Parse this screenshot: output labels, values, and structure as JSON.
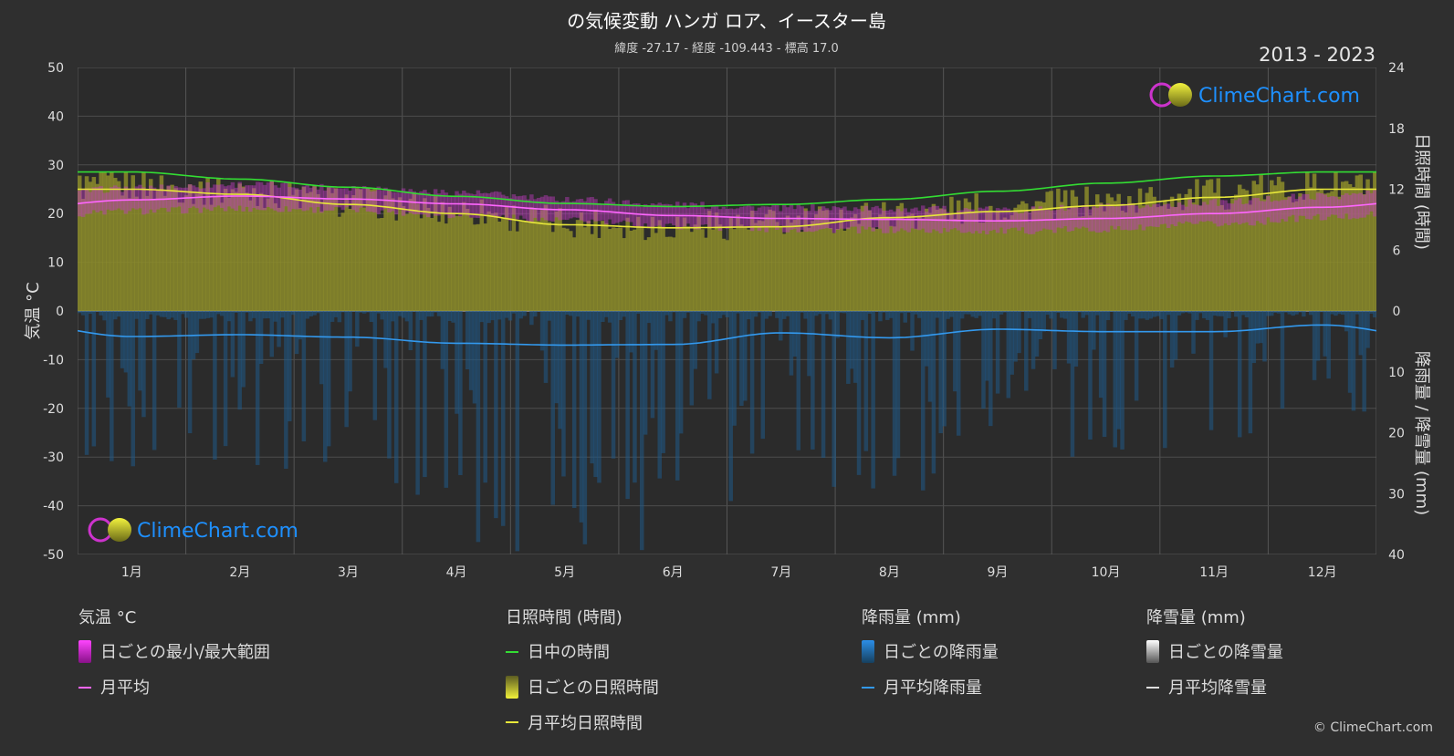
{
  "title": "の気候変動 ハンガ ロア、イースター島",
  "subtitle": "緯度 -27.17 - 経度 -109.443 - 標高 17.0",
  "year_range": "2013 - 2023",
  "brand": "ClimeChart.com",
  "copyright": "© ClimeChart.com",
  "colors": {
    "background": "#2f2f2f",
    "plot_bg": "#2b2b2b",
    "daylight": "#33dd33",
    "sunshine_fill": "#8c8c2a",
    "sunshine_line": "#e8e83a",
    "temp_line": "#ff66ff",
    "temp_range": "#cc33cc",
    "rain_line": "#3399ee",
    "rain_bar": "#1f5a88",
    "snow_line": "#dddddd",
    "brand_text": "#1e90ff"
  },
  "axes": {
    "left_label": "気温 °C",
    "right_top_label": "日照時間 (時間)",
    "right_bottom_label": "降雨量 / 降雪量 (mm)",
    "left_ticks": [
      "50",
      "40",
      "30",
      "20",
      "10",
      "0",
      "-10",
      "-20",
      "-30",
      "-40",
      "-50"
    ],
    "right_top_ticks": [
      "24",
      "18",
      "12",
      "6",
      "0"
    ],
    "right_bottom_ticks": [
      "10",
      "20",
      "30",
      "40"
    ]
  },
  "chart_data": {
    "type": "line",
    "x": [
      "1月",
      "2月",
      "3月",
      "4月",
      "5月",
      "6月",
      "7月",
      "8月",
      "9月",
      "10月",
      "11月",
      "12月"
    ],
    "temperature_ylim": [
      -50,
      50
    ],
    "sunshine_ylim": [
      0,
      24
    ],
    "precipitation_ylim": [
      0,
      40
    ],
    "series": [
      {
        "name": "日中の時間",
        "axis": "sunshine_hours",
        "values": [
          13.7,
          13.0,
          12.2,
          11.3,
          10.6,
          10.3,
          10.5,
          11.0,
          11.8,
          12.6,
          13.3,
          13.7
        ]
      },
      {
        "name": "月平均日照時間",
        "axis": "sunshine_hours",
        "values": [
          12.0,
          11.5,
          10.5,
          9.6,
          8.5,
          8.2,
          8.3,
          9.2,
          9.8,
          10.4,
          11.2,
          12.0
        ]
      },
      {
        "name": "月平均",
        "axis": "temperature_c",
        "values": [
          22.8,
          23.6,
          23.0,
          22.0,
          20.8,
          19.6,
          19.0,
          18.8,
          18.5,
          19.0,
          20.0,
          21.3
        ]
      },
      {
        "name": "月平均降雨量",
        "axis": "precipitation_mm",
        "values": [
          4.2,
          3.9,
          4.3,
          5.3,
          5.6,
          5.5,
          3.6,
          4.4,
          3.0,
          3.4,
          3.4,
          2.3
        ]
      },
      {
        "name": "月平均降雪量",
        "axis": "precipitation_mm",
        "values": [
          0,
          0,
          0,
          0,
          0,
          0,
          0,
          0,
          0,
          0,
          0,
          0
        ]
      }
    ],
    "temperature_range_min": [
      20.5,
      21.0,
      20.8,
      19.8,
      18.6,
      17.4,
      16.8,
      16.6,
      16.4,
      16.8,
      17.8,
      19.2
    ],
    "temperature_range_max": [
      25.2,
      26.0,
      25.4,
      24.3,
      23.0,
      21.8,
      21.2,
      21.0,
      20.7,
      21.3,
      22.3,
      23.6
    ],
    "grid": true
  },
  "legend": {
    "temp": {
      "heading": "気温 °C",
      "items": [
        "日ごとの最小/最大範囲",
        "月平均"
      ]
    },
    "sun": {
      "heading": "日照時間 (時間)",
      "items": [
        "日中の時間",
        "日ごとの日照時間",
        "月平均日照時間"
      ]
    },
    "rain": {
      "heading": "降雨量 (mm)",
      "items": [
        "日ごとの降雨量",
        "月平均降雨量"
      ]
    },
    "snow": {
      "heading": "降雪量 (mm)",
      "items": [
        "日ごとの降雪量",
        "月平均降雪量"
      ]
    }
  }
}
